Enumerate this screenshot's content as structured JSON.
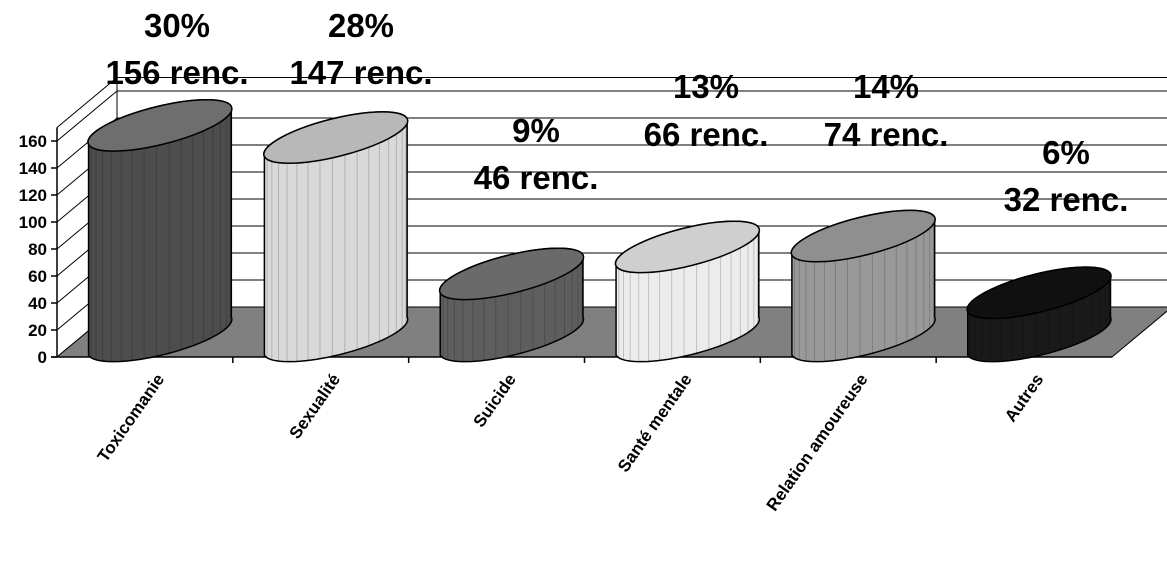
{
  "chart_data": {
    "type": "bar",
    "style": "3d-cylinder",
    "categories": [
      "Toxicomanie",
      "Sexualité",
      "Suicide",
      "Santé mentale",
      "Relation amoureuse",
      "Autres"
    ],
    "values": [
      156,
      147,
      46,
      66,
      74,
      32
    ],
    "percent_labels": [
      "30%",
      "28%",
      "9%",
      "13%",
      "14%",
      "6%"
    ],
    "count_labels": [
      "156 renc.",
      "147 renc.",
      "46 renc.",
      "66 renc.",
      "74 renc.",
      "32 renc."
    ],
    "ylim": [
      0,
      160
    ],
    "yticks": [
      "0",
      "20",
      "40",
      "60",
      "80",
      "100",
      "120",
      "140",
      "160"
    ],
    "grid": true,
    "legend": "none",
    "colors": {
      "floor": "#808080",
      "bars": [
        "#4d4d4d",
        "#d9d9d9",
        "#5e5e5e",
        "#ececec",
        "#999999",
        "#1a1a1a"
      ],
      "tops": [
        "#6e6e6e",
        "#b8b8b8",
        "#6a6a6a",
        "#cfcfcf",
        "#8f8f8f",
        "#101010"
      ]
    }
  }
}
